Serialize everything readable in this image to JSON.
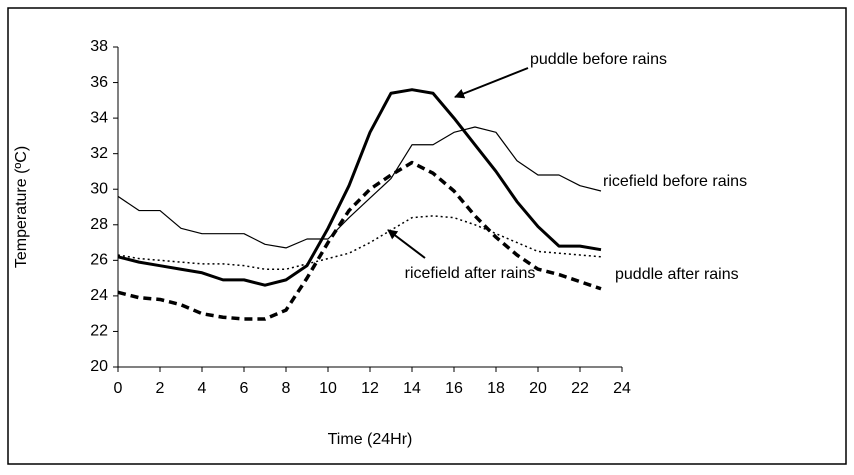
{
  "chart_data": {
    "type": "line",
    "x_label": "Time (24Hr)",
    "y_label": "Temperature (ºC)",
    "x": [
      0,
      1,
      2,
      3,
      4,
      5,
      6,
      7,
      8,
      9,
      10,
      11,
      12,
      13,
      14,
      15,
      16,
      17,
      18,
      19,
      20,
      21,
      22,
      23
    ],
    "xlim": [
      0,
      24
    ],
    "xticks": [
      0,
      2,
      4,
      6,
      8,
      10,
      12,
      14,
      16,
      18,
      20,
      22,
      24
    ],
    "ylim": [
      20,
      38
    ],
    "yticks": [
      20,
      22,
      24,
      26,
      28,
      30,
      32,
      34,
      36,
      38
    ],
    "series": [
      {
        "name": "puddle before rains",
        "color": "#000000",
        "line_style": "solid",
        "line_width": 3,
        "values": [
          26.2,
          25.9,
          25.7,
          25.5,
          25.3,
          24.9,
          24.9,
          24.6,
          24.9,
          25.7,
          27.8,
          30.2,
          33.2,
          35.4,
          35.6,
          35.4,
          34.0,
          32.5,
          31.0,
          29.3,
          27.9,
          26.8,
          26.8,
          26.6
        ]
      },
      {
        "name": "ricefield before rains",
        "color": "#000000",
        "line_style": "solid",
        "line_width": 1.2,
        "values": [
          29.6,
          28.8,
          28.8,
          27.8,
          27.5,
          27.5,
          27.5,
          26.9,
          26.7,
          27.2,
          27.2,
          28.4,
          29.5,
          30.6,
          32.5,
          32.5,
          33.2,
          33.5,
          33.2,
          31.6,
          30.8,
          30.8,
          30.2,
          29.9
        ]
      },
      {
        "name": "puddle after rains",
        "color": "#000000",
        "line_style": "dashed",
        "line_width": 3.5,
        "values": [
          24.2,
          23.9,
          23.8,
          23.5,
          23.0,
          22.8,
          22.7,
          22.7,
          23.2,
          25.0,
          27.0,
          28.8,
          30.0,
          30.8,
          31.5,
          30.9,
          29.9,
          28.5,
          27.3,
          26.3,
          25.5,
          25.2,
          24.8,
          24.4
        ]
      },
      {
        "name": "ricefield after rains",
        "color": "#000000",
        "line_style": "dotted",
        "line_width": 1.5,
        "values": [
          26.3,
          26.1,
          26.0,
          25.9,
          25.8,
          25.8,
          25.7,
          25.5,
          25.5,
          25.8,
          26.1,
          26.4,
          27.0,
          27.7,
          28.4,
          28.5,
          28.4,
          28.0,
          27.5,
          27.0,
          26.5,
          26.4,
          26.3,
          26.2
        ]
      }
    ]
  }
}
